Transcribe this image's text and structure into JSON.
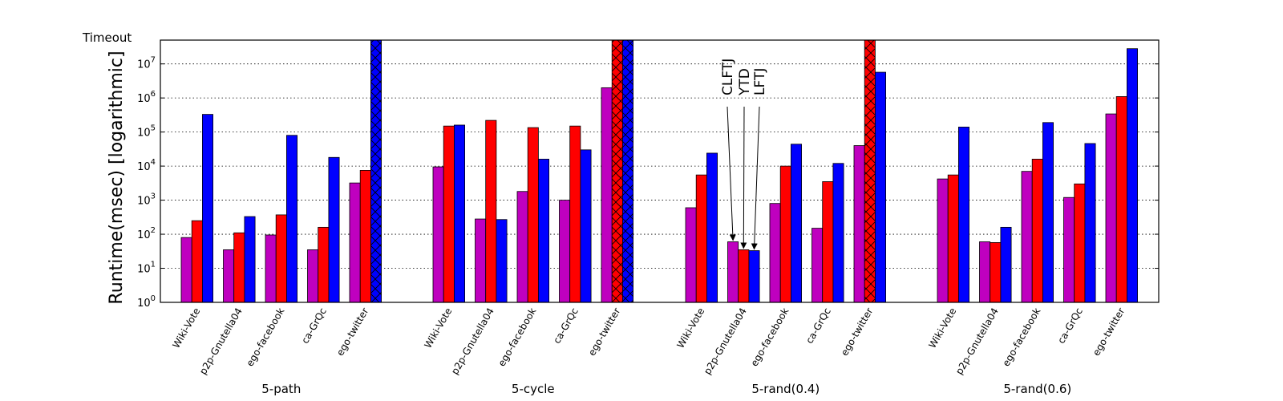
{
  "chart_data": {
    "type": "bar",
    "ylabel": "Runtime(msec) [logarithmic]",
    "yscale": "log",
    "ylim": [
      1,
      50000000
    ],
    "grid": "y-dotted",
    "timeout_label": "Timeout",
    "timeout_value": 50000000,
    "y_tick_labels": [
      {
        "value": 1,
        "label": "10^0"
      },
      {
        "value": 10,
        "label": "10^1"
      },
      {
        "value": 100,
        "label": "10^2"
      },
      {
        "value": 1000,
        "label": "10^3"
      },
      {
        "value": 10000,
        "label": "10^4"
      },
      {
        "value": 100000,
        "label": "10^5"
      },
      {
        "value": 1000000,
        "label": "10^6"
      },
      {
        "value": 10000000,
        "label": "10^7"
      }
    ],
    "datasets": [
      "Wiki-Vote",
      "p2p-Gnutella04",
      "ego-facebook",
      "ca-GrQc",
      "ego-twitter"
    ],
    "series": [
      {
        "name": "CLFTJ",
        "color": "#bf00bf"
      },
      {
        "name": "YTD",
        "color": "#ff0000"
      },
      {
        "name": "LFTJ",
        "color": "#0000ff"
      }
    ],
    "groups": [
      {
        "name": "5-path",
        "values": [
          [
            80,
            250,
            330000
          ],
          [
            35,
            110,
            330
          ],
          [
            95,
            370,
            80000
          ],
          [
            35,
            160,
            18000
          ],
          [
            3200,
            7500,
            "timeout"
          ]
        ]
      },
      {
        "name": "5-cycle",
        "values": [
          [
            9500,
            150000,
            160000
          ],
          [
            280,
            220000,
            270
          ],
          [
            1800,
            135000,
            16000
          ],
          [
            1000,
            150000,
            30000
          ],
          [
            2000000,
            "timeout",
            "timeout"
          ]
        ]
      },
      {
        "name": "5-rand(0.4)",
        "values": [
          [
            600,
            5500,
            24000
          ],
          [
            60,
            35,
            33
          ],
          [
            800,
            10000,
            44000
          ],
          [
            150,
            3500,
            12000
          ],
          [
            40000,
            "timeout",
            5700000
          ]
        ]
      },
      {
        "name": "5-rand(0.6)",
        "values": [
          [
            4200,
            5500,
            140000
          ],
          [
            60,
            57,
            160
          ],
          [
            7000,
            16000,
            190000
          ],
          [
            1200,
            3000,
            46000
          ],
          [
            340000,
            1100000,
            28000000
          ]
        ]
      }
    ],
    "annotations": [
      {
        "text": "CLFTJ",
        "group": 2,
        "dataset": 1,
        "series": 0
      },
      {
        "text": "YTD",
        "group": 2,
        "dataset": 1,
        "series": 1
      },
      {
        "text": "LFTJ",
        "group": 2,
        "dataset": 1,
        "series": 2
      }
    ]
  }
}
